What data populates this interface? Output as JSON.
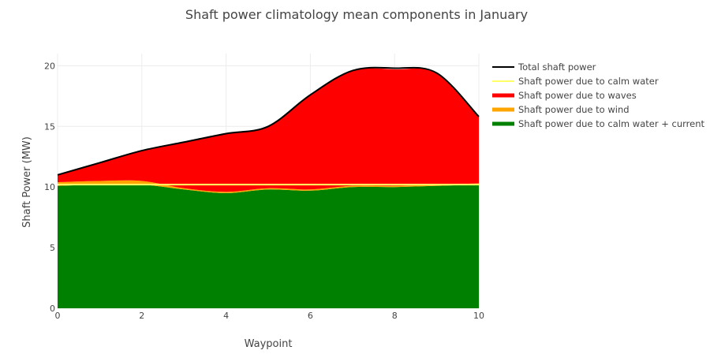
{
  "chart_data": {
    "type": "area",
    "title": "Shaft power climatology mean components in January",
    "xlabel": "Waypoint",
    "ylabel": "Shaft Power (MW)",
    "xlim": [
      0,
      10
    ],
    "ylim": [
      0,
      21
    ],
    "x_ticks": [
      0,
      2,
      4,
      6,
      8,
      10
    ],
    "y_ticks": [
      0,
      5,
      10,
      15,
      20
    ],
    "grid": true,
    "legend_position": "right",
    "x": [
      0,
      1,
      2,
      3,
      4,
      5,
      6,
      7,
      8,
      9,
      10
    ],
    "series": [
      {
        "name": "Total shaft power",
        "color": "#000000",
        "style": "line",
        "values": [
          11.0,
          12.0,
          13.0,
          13.7,
          14.4,
          15.0,
          17.6,
          19.6,
          19.8,
          19.4,
          15.8
        ]
      },
      {
        "name": "Shaft power due to calm water",
        "color": "#ffff66",
        "style": "line",
        "values": [
          10.2,
          10.2,
          10.2,
          10.2,
          10.2,
          10.2,
          10.2,
          10.2,
          10.2,
          10.2,
          10.2
        ]
      },
      {
        "name": "Shaft power due to waves",
        "color": "#ff0000",
        "style": "area",
        "values": [
          0.6,
          1.5,
          2.5,
          3.8,
          4.8,
          5.1,
          7.8,
          9.5,
          9.6,
          9.2,
          5.5
        ]
      },
      {
        "name": "Shaft power due to wind",
        "color": "#ffa500",
        "style": "area",
        "values": [
          0.3,
          0.3,
          0.3,
          0.1,
          0.1,
          0.1,
          0.1,
          0.1,
          0.1,
          0.1,
          0.1
        ]
      },
      {
        "name": "Shaft power due to calm water + current",
        "color": "#008000",
        "style": "area",
        "values": [
          10.1,
          10.2,
          10.2,
          9.8,
          9.5,
          9.8,
          9.7,
          10.0,
          10.0,
          10.1,
          10.2
        ]
      }
    ]
  }
}
